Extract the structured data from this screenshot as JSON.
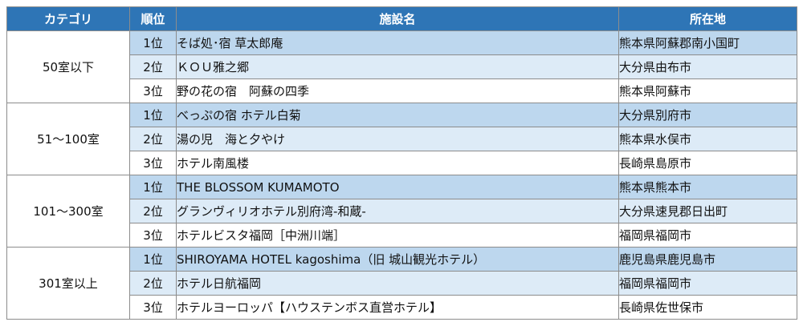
{
  "headers": {
    "category": "カテゴリ",
    "rank": "順位",
    "facility": "施設名",
    "location": "所在地"
  },
  "groups": [
    {
      "category": "50室以下",
      "rows": [
        {
          "rank": "1位",
          "name": "そば処･宿 草太郎庵",
          "location": "熊本県阿蘇郡南小国町"
        },
        {
          "rank": "2位",
          "name": "ＫＯＵ雅之郷",
          "location": "大分県由布市"
        },
        {
          "rank": "3位",
          "name": "野の花の宿　阿蘇の四季",
          "location": "熊本県阿蘇市"
        }
      ]
    },
    {
      "category": "51～100室",
      "rows": [
        {
          "rank": "1位",
          "name": "べっぷの宿 ホテル白菊",
          "location": "大分県別府市"
        },
        {
          "rank": "2位",
          "name": "湯の児　海と夕やけ",
          "location": "熊本県水俣市"
        },
        {
          "rank": "3位",
          "name": "ホテル南風楼",
          "location": "長崎県島原市"
        }
      ]
    },
    {
      "category": "101～300室",
      "rows": [
        {
          "rank": "1位",
          "name": "THE BLOSSOM KUMAMOTO",
          "location": "熊本県熊本市"
        },
        {
          "rank": "2位",
          "name": "グランヴィリオホテル別府湾-和蔵-",
          "location": "大分県速見郡日出町"
        },
        {
          "rank": "3位",
          "name": "ホテルビスタ福岡［中洲川端］",
          "location": "福岡県福岡市"
        }
      ]
    },
    {
      "category": "301室以上",
      "rows": [
        {
          "rank": "1位",
          "name": "SHIROYAMA HOTEL kagoshima（旧 城山観光ホテル）",
          "location": "鹿児島県鹿児島市"
        },
        {
          "rank": "2位",
          "name": "ホテル日航福岡",
          "location": "福岡県福岡市"
        },
        {
          "rank": "3位",
          "name": "ホテルヨーロッパ【ハウステンボス直営ホテル】",
          "location": "長崎県佐世保市"
        }
      ]
    }
  ],
  "colors": {
    "header_bg": "#2e75b6",
    "row_first_bg": "#bdd7ee",
    "row_alt_bg": "#ddebf7",
    "border": "#8c8c8c"
  }
}
